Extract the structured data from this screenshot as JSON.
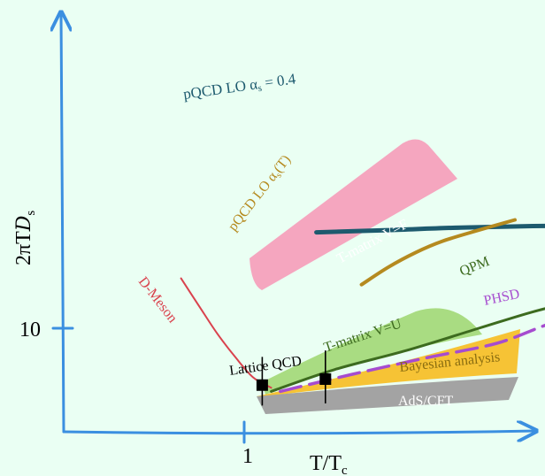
{
  "chart_data": {
    "type": "line",
    "title": "",
    "xlabel": "T/T",
    "xlabel_sub": "c",
    "ylabel": "2πT",
    "ylabel_sym": "D",
    "ylabel_sub": "s",
    "ticks": {
      "x": [
        "1"
      ],
      "y": [
        "10"
      ]
    },
    "xlim": [
      0.6,
      3.0
    ],
    "ylim": [
      2,
      30
    ],
    "grid": false,
    "legend": "none",
    "series": [
      {
        "name": "pQCD LO α",
        "label_sub": "s",
        "label_tail": " = 0.4",
        "color": "#1d5a6e",
        "x": [
          1.4,
          1.8,
          2.2,
          2.6,
          3.0
        ],
        "y": [
          26.2,
          26.8,
          27.5,
          27.9,
          28.1
        ]
      },
      {
        "name": "pQCD LO α",
        "label_sub": "s",
        "label_tail": "(T)",
        "color": "#b58a1f",
        "x": [
          1.65,
          1.8,
          1.95,
          2.1,
          2.3,
          2.5
        ],
        "y": [
          15.5,
          18.5,
          21.4,
          24.0,
          26.8,
          29.7
        ]
      },
      {
        "name": "D-Meson",
        "color": "#d9424d",
        "x": [
          0.65,
          0.75,
          0.85,
          0.95,
          1.05,
          1.15
        ],
        "y": [
          16.5,
          12.5,
          9.5,
          7.5,
          6.1,
          5.5
        ]
      },
      {
        "name": "QPM",
        "color": "#3d6b1f",
        "x": [
          1.15,
          1.5,
          1.9,
          2.3,
          2.6,
          2.85
        ],
        "y": [
          5.3,
          6.6,
          8.0,
          10.0,
          11.8,
          13.2
        ]
      },
      {
        "name": "PHSD",
        "color": "#a64ccf",
        "x": [
          1.2,
          1.6,
          2.0,
          2.4,
          2.7,
          3.0
        ],
        "y": [
          5.3,
          6.3,
          7.4,
          8.6,
          10.5,
          12.0
        ]
      }
    ],
    "bands": [
      {
        "name": "T-matrix V=F",
        "color": "#f5a6bf"
      },
      {
        "name": "T-matrix V=U",
        "color": "#a9dc82"
      },
      {
        "name": "Bayesian analysis",
        "color": "#f6c335"
      },
      {
        "name": "AdS/CFT",
        "color": "#a3a3a3"
      }
    ],
    "points": {
      "name": "Lattice QCD",
      "x": [
        1.1,
        1.45
      ],
      "y": [
        5.65,
        6.0
      ],
      "yerr_low": [
        4.6,
        4.7
      ],
      "yerr_high": [
        7.5,
        8.0
      ]
    }
  }
}
